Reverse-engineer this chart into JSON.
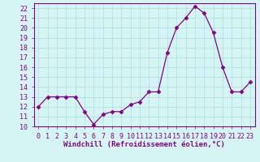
{
  "x": [
    0,
    1,
    2,
    3,
    4,
    5,
    6,
    7,
    8,
    9,
    10,
    11,
    12,
    13,
    14,
    15,
    16,
    17,
    18,
    19,
    20,
    21,
    22,
    23
  ],
  "y": [
    12,
    13,
    13,
    13,
    13,
    11.5,
    10.2,
    11.2,
    11.5,
    11.5,
    12.2,
    12.5,
    13.5,
    13.5,
    17.5,
    20,
    21,
    22.2,
    21.5,
    19.5,
    16,
    13.5,
    13.5,
    14.5
  ],
  "line_color": "#880088",
  "marker": "D",
  "marker_size": 2.5,
  "bg_color": "#d5f5f5",
  "grid_color": "#aadddd",
  "axis_color": "#880088",
  "text_color": "#880088",
  "xlabel": "Windchill (Refroidissement éolien,°C)",
  "xlabel_fontsize": 6.5,
  "tick_fontsize": 6,
  "ylim": [
    10,
    22.5
  ],
  "xlim": [
    -0.5,
    23.5
  ],
  "yticks": [
    10,
    11,
    12,
    13,
    14,
    15,
    16,
    17,
    18,
    19,
    20,
    21,
    22
  ],
  "xticks": [
    0,
    1,
    2,
    3,
    4,
    5,
    6,
    7,
    8,
    9,
    10,
    11,
    12,
    13,
    14,
    15,
    16,
    17,
    18,
    19,
    20,
    21,
    22,
    23
  ]
}
